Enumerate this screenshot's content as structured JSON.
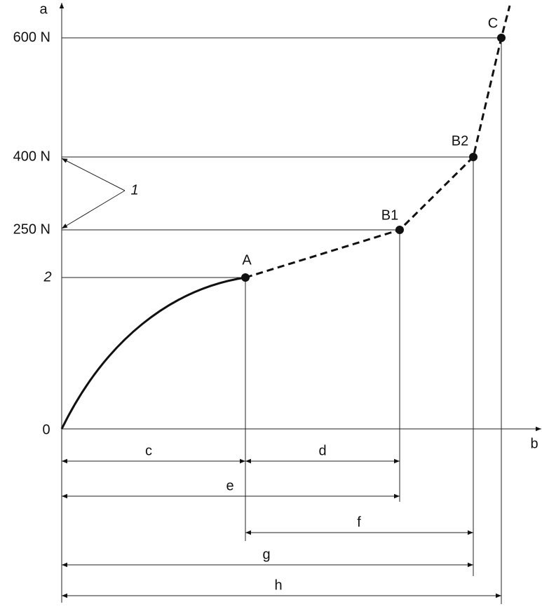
{
  "axes": {
    "y_label": "a",
    "x_label": "b",
    "origin": "0"
  },
  "levels": [
    "600 N",
    "400 N",
    "250 N",
    "2"
  ],
  "callout": "1",
  "points": [
    "A",
    "B1",
    "B2",
    "C"
  ],
  "dimensions": [
    "c",
    "d",
    "e",
    "f",
    "g",
    "h"
  ]
}
